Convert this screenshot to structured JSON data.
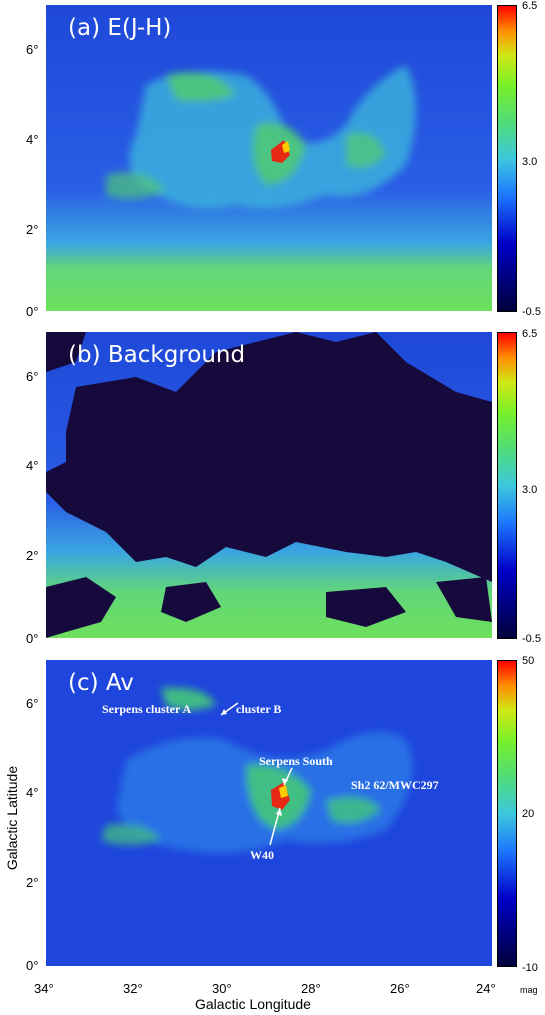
{
  "panels": [
    {
      "label": "(a) E(J-H)",
      "colorbar": {
        "max": "6.5",
        "mid": "3.0",
        "min": "-0.5"
      }
    },
    {
      "label": "(b) Background",
      "colorbar": {
        "max": "6.5",
        "mid": "3.0",
        "min": "-0.5"
      }
    },
    {
      "label": "(c) Av",
      "colorbar": {
        "max": "50",
        "mid": "20",
        "min": "-10",
        "unit": "mag"
      }
    }
  ],
  "y_ticks": [
    "0°",
    "2°",
    "4°",
    "6°"
  ],
  "x_ticks": [
    "34°",
    "32°",
    "30°",
    "28°",
    "26°",
    "24°"
  ],
  "xlabel": "Galactic Longitude",
  "ylabel": "Galactic Latitude",
  "annotations": {
    "serpens_cluster_a": "Serpens cluster A",
    "cluster_b": "cluster B",
    "serpens_south": "Serpens South",
    "sh2": "Sh2 62/MWC297",
    "w40": "W40"
  },
  "colors": {
    "low": "#00003a",
    "mid": "#3cc8dc",
    "high": "#ff0000",
    "background": "#1e46dc"
  }
}
